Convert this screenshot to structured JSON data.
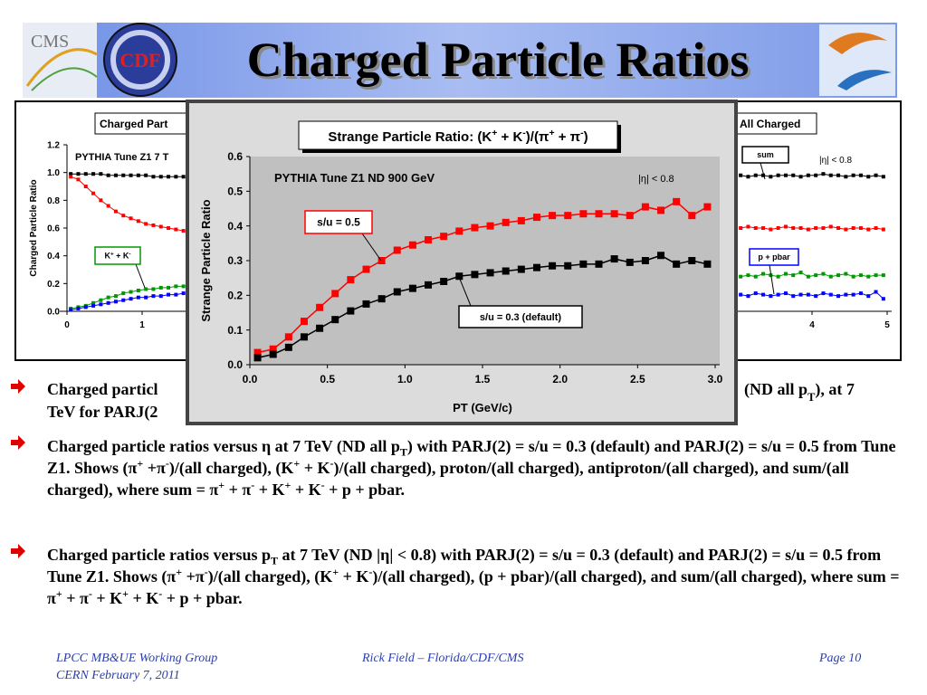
{
  "header": {
    "title": "Charged Particle Ratios",
    "logos": [
      "CMS",
      "CDF"
    ]
  },
  "chart_data": [
    {
      "type": "line",
      "title": [
        "Strange Particle Ratio: (K",
        {
          "sup": "+"
        },
        " + K",
        {
          "sup": "-"
        },
        ")/(π",
        {
          "sup": "+"
        },
        " + π",
        {
          "sup": "-"
        },
        ")"
      ],
      "subtitle": "PYTHIA Tune Z1 ND 900 GeV",
      "note": "|η| < 0.8",
      "xlabel": "PT (GeV/c)",
      "ylabel": "Strange Particle Ratio",
      "x": [
        0.05,
        0.15,
        0.25,
        0.35,
        0.45,
        0.55,
        0.65,
        0.75,
        0.85,
        0.95,
        1.05,
        1.15,
        1.25,
        1.35,
        1.45,
        1.55,
        1.65,
        1.75,
        1.85,
        1.95,
        2.05,
        2.15,
        2.25,
        2.35,
        2.45,
        2.55,
        2.65,
        2.75,
        2.85,
        2.95
      ],
      "series": [
        {
          "name": "s/u = 0.5",
          "color": "#ff0000",
          "values": [
            0.035,
            0.045,
            0.08,
            0.125,
            0.165,
            0.205,
            0.245,
            0.275,
            0.3,
            0.33,
            0.345,
            0.36,
            0.37,
            0.385,
            0.395,
            0.4,
            0.41,
            0.415,
            0.425,
            0.43,
            0.43,
            0.435,
            0.435,
            0.435,
            0.43,
            0.455,
            0.445,
            0.47,
            0.43,
            0.455
          ]
        },
        {
          "name": "s/u = 0.3 (default)",
          "color": "#000000",
          "values": [
            0.02,
            0.03,
            0.05,
            0.08,
            0.105,
            0.13,
            0.155,
            0.175,
            0.19,
            0.21,
            0.22,
            0.23,
            0.24,
            0.255,
            0.26,
            0.265,
            0.27,
            0.275,
            0.28,
            0.285,
            0.285,
            0.29,
            0.29,
            0.305,
            0.295,
            0.3,
            0.315,
            0.29,
            0.3,
            0.29
          ]
        }
      ],
      "xlim": [
        0,
        3
      ],
      "xticks": [
        {
          "value": 0,
          "label": "0.0"
        },
        0.5,
        {
          "value": 1,
          "label": "1.0"
        },
        1.5,
        {
          "value": 2,
          "label": "2.0"
        },
        2.5,
        {
          "value": 3,
          "label": "3.0"
        }
      ],
      "ylim": [
        0,
        0.6
      ],
      "yticks": [
        {
          "value": 0,
          "label": "0.0"
        },
        0.1,
        0.2,
        0.3,
        0.4,
        0.5,
        0.6
      ]
    },
    {
      "type": "line",
      "title": "Charged Part",
      "subtitle": "PYTHIA Tune Z1 7 T",
      "ylabel": "Charged Particle Ratio",
      "x": [
        0.05,
        0.15,
        0.25,
        0.35,
        0.45,
        0.55,
        0.65,
        0.75,
        0.85,
        0.95,
        1.05,
        1.15,
        1.25,
        1.35,
        1.45,
        1.55
      ],
      "series": [
        {
          "color": "#000000",
          "values": [
            0.99,
            0.99,
            0.99,
            0.99,
            0.99,
            0.98,
            0.98,
            0.98,
            0.98,
            0.98,
            0.98,
            0.97,
            0.97,
            0.97,
            0.97,
            0.97
          ]
        },
        {
          "color": "#ff0000",
          "values": [
            0.97,
            0.95,
            0.9,
            0.85,
            0.8,
            0.76,
            0.72,
            0.69,
            0.67,
            0.65,
            0.63,
            0.62,
            0.61,
            0.6,
            0.59,
            0.58
          ]
        },
        {
          "name": [
            "K",
            {
              "sup": "+"
            },
            " + K",
            {
              "sup": "-"
            }
          ],
          "color": "#009900",
          "values": [
            0.02,
            0.03,
            0.04,
            0.06,
            0.08,
            0.1,
            0.11,
            0.13,
            0.14,
            0.15,
            0.16,
            0.16,
            0.17,
            0.17,
            0.18,
            0.18
          ]
        },
        {
          "color": "#0000ff",
          "values": [
            0.01,
            0.02,
            0.03,
            0.04,
            0.05,
            0.06,
            0.07,
            0.08,
            0.09,
            0.1,
            0.1,
            0.11,
            0.11,
            0.12,
            0.12,
            0.13
          ]
        }
      ],
      "xlim": [
        0,
        5
      ],
      "xticks": [
        0,
        1
      ],
      "ylim": [
        0,
        1.2
      ],
      "yticks": [
        {
          "value": 0,
          "label": "0.0"
        },
        0.2,
        0.4,
        0.6,
        0.8,
        {
          "value": 1,
          "label": "1.0"
        },
        1.2
      ]
    },
    {
      "type": "line",
      "title": "All Charged",
      "note": "|η| < 0.8",
      "x": [
        3.05,
        3.15,
        3.25,
        3.35,
        3.45,
        3.55,
        3.65,
        3.75,
        3.85,
        3.95,
        4.05,
        4.15,
        4.25,
        4.35,
        4.45,
        4.55,
        4.65,
        4.75,
        4.85,
        4.95
      ],
      "series": [
        {
          "name": "sum",
          "color": "#000000",
          "values": [
            0.98,
            0.97,
            0.98,
            0.98,
            0.97,
            0.98,
            0.98,
            0.98,
            0.97,
            0.98,
            0.98,
            0.99,
            0.98,
            0.98,
            0.97,
            0.98,
            0.98,
            0.97,
            0.98,
            0.97
          ]
        },
        {
          "color": "#ff0000",
          "values": [
            0.6,
            0.61,
            0.6,
            0.6,
            0.59,
            0.6,
            0.61,
            0.6,
            0.6,
            0.59,
            0.6,
            0.6,
            0.61,
            0.6,
            0.59,
            0.6,
            0.6,
            0.59,
            0.6,
            0.59
          ]
        },
        {
          "color": "#009900",
          "values": [
            0.25,
            0.26,
            0.25,
            0.27,
            0.26,
            0.25,
            0.27,
            0.26,
            0.28,
            0.25,
            0.26,
            0.27,
            0.25,
            0.26,
            0.27,
            0.25,
            0.26,
            0.25,
            0.26,
            0.26
          ]
        },
        {
          "name": "p + pbar",
          "color": "#0000ff",
          "values": [
            0.12,
            0.11,
            0.13,
            0.12,
            0.11,
            0.12,
            0.13,
            0.11,
            0.12,
            0.12,
            0.11,
            0.13,
            0.12,
            0.11,
            0.12,
            0.12,
            0.13,
            0.11,
            0.14,
            0.09
          ]
        }
      ],
      "xlim": [
        3,
        5
      ],
      "xticks": [
        4,
        5
      ],
      "ylim": [
        0,
        1.2
      ]
    }
  ],
  "bullets": [
    {
      "fragments": [
        "Charged particl",
        "TeV for PARJ(2",
        [
          "(ND all p",
          {
            "sub": "T"
          },
          "), at 7"
        ]
      ]
    },
    [
      "Charged particle ratios versus η at 7 TeV (ND all p",
      {
        "sub": "T"
      },
      ") with PARJ(2) = s/u = 0.3 (default) and PARJ(2) = s/u = 0.5 from Tune Z1. Shows (π",
      {
        "sup": "+"
      },
      " +π",
      {
        "sup": "-"
      },
      ")/(all charged), (K",
      {
        "sup": "+"
      },
      " + K",
      {
        "sup": "-"
      },
      ")/(all charged), proton/(all charged), antiproton/(all charged), and sum/(all charged), where sum = π",
      {
        "sup": "+"
      },
      " + π",
      {
        "sup": "-"
      },
      " + K",
      {
        "sup": "+"
      },
      " + K",
      {
        "sup": "-"
      },
      " + p + pbar."
    ],
    [
      "Charged particle ratios versus p",
      {
        "sub": "T"
      },
      " at 7 TeV (ND |η| < 0.8) with PARJ(2) = s/u = 0.3 (default) and PARJ(2) = s/u = 0.5 from Tune Z1. Shows (π",
      {
        "sup": "+"
      },
      " +π",
      {
        "sup": "-"
      },
      ")/(all charged), (K",
      {
        "sup": "+"
      },
      " + K",
      {
        "sup": "-"
      },
      ")/(all charged), (p + pbar)/(all charged), and sum/(all charged), where sum = π",
      {
        "sup": "+"
      },
      " + π",
      {
        "sup": "-"
      },
      " + K",
      {
        "sup": "+"
      },
      " + K",
      {
        "sup": "-"
      },
      " + p + pbar."
    ]
  ],
  "footer": {
    "left": [
      "LPCC MB&UE Working Group",
      "CERN February 7, 2011"
    ],
    "center": "Rick Field – Florida/CDF/CMS",
    "right": "Page 10"
  }
}
